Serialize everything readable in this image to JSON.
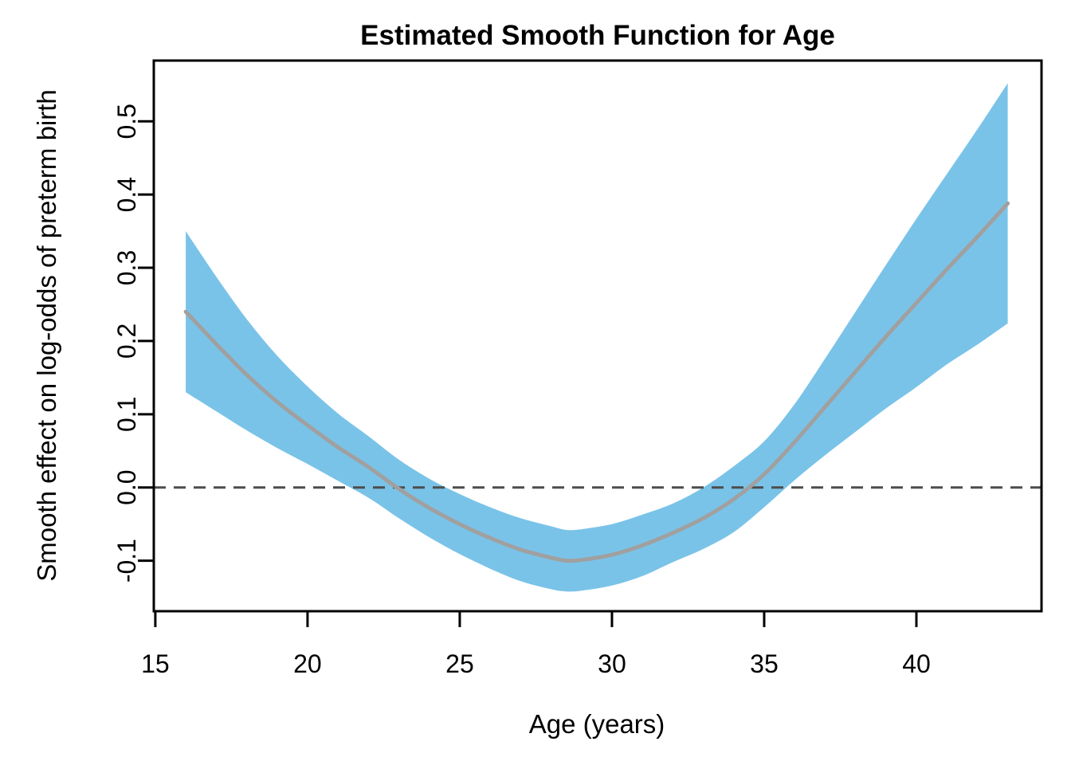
{
  "figure": {
    "background": "#FFFFFF",
    "axis_color": "#000000",
    "text_color": "#000000"
  },
  "chart_data": {
    "type": "line",
    "title": "Estimated Smooth Function for Age",
    "xlabel": "Age (years)",
    "ylabel": "Smooth effect on log-odds of preterm birth",
    "legend": "none",
    "grid": false,
    "xlim": [
      14.95,
      44.11
    ],
    "ylim": [
      -0.169,
      0.583
    ],
    "x_ticks": [
      15,
      20,
      25,
      30,
      35,
      40
    ],
    "x_tick_labels": [
      "15",
      "20",
      "25",
      "30",
      "35",
      "40"
    ],
    "y_ticks": [
      -0.1,
      0.0,
      0.1,
      0.2,
      0.3,
      0.4,
      0.5
    ],
    "y_tick_labels": [
      "-0.1",
      "0.0",
      "0.1",
      "0.2",
      "0.3",
      "0.4",
      "0.5"
    ],
    "reference_line": {
      "y": 0.0,
      "style": "dashed",
      "color": "#4D4D4D"
    },
    "band_color": "#7AC3E8",
    "line_color": "#A0A0A0",
    "x": [
      16,
      17,
      18,
      19,
      20,
      21,
      22,
      23,
      24,
      25,
      26,
      27,
      28,
      28.5,
      29,
      30,
      31,
      32,
      33,
      34,
      35,
      36,
      37,
      38,
      39,
      40,
      41,
      42,
      43
    ],
    "series": [
      {
        "name": "smooth_fit",
        "role": "center-line",
        "values": [
          0.24,
          0.196,
          0.154,
          0.117,
          0.085,
          0.055,
          0.028,
          -0.002,
          -0.028,
          -0.05,
          -0.069,
          -0.085,
          -0.096,
          -0.1,
          -0.099,
          -0.092,
          -0.079,
          -0.062,
          -0.042,
          -0.016,
          0.018,
          0.062,
          0.11,
          0.158,
          0.206,
          0.252,
          0.298,
          0.342,
          0.388
        ]
      },
      {
        "name": "ci_lower",
        "role": "band-lower",
        "values": [
          0.13,
          0.104,
          0.078,
          0.054,
          0.032,
          0.009,
          -0.014,
          -0.042,
          -0.068,
          -0.091,
          -0.111,
          -0.128,
          -0.139,
          -0.142,
          -0.141,
          -0.134,
          -0.121,
          -0.102,
          -0.084,
          -0.061,
          -0.027,
          0.01,
          0.044,
          0.076,
          0.108,
          0.137,
          0.168,
          0.195,
          0.224
        ]
      },
      {
        "name": "ci_upper",
        "role": "band-upper",
        "values": [
          0.35,
          0.288,
          0.23,
          0.18,
          0.138,
          0.101,
          0.07,
          0.038,
          0.012,
          -0.009,
          -0.027,
          -0.042,
          -0.053,
          -0.058,
          -0.057,
          -0.05,
          -0.037,
          -0.022,
          0.0,
          0.029,
          0.063,
          0.114,
          0.176,
          0.24,
          0.304,
          0.367,
          0.428,
          0.489,
          0.552
        ]
      }
    ]
  }
}
